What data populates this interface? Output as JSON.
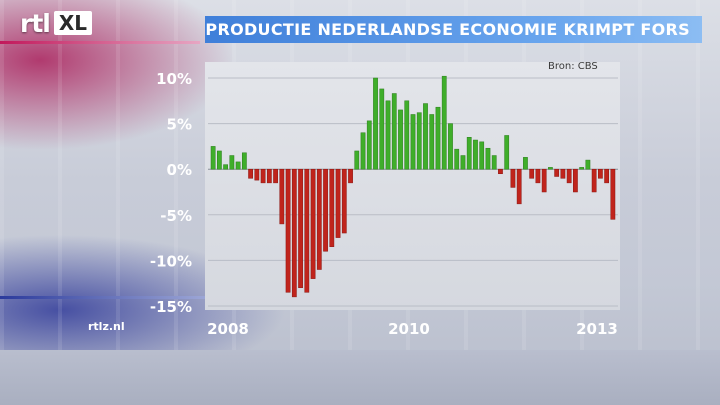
{
  "brand": {
    "logo_rtl": "rtl",
    "logo_xl": "XL",
    "website": "rtlz.nl"
  },
  "title": "PRODUCTIE NEDERLANDSE ECONOMIE KRIMPT FORS",
  "source": "Bron: CBS",
  "colors": {
    "positive": "#3fae2a",
    "negative": "#c0241c",
    "title_bar": "#4a86dc"
  },
  "chart_data": {
    "type": "bar",
    "title": "PRODUCTIE NEDERLANDSE ECONOMIE KRIMPT FORS",
    "source": "Bron: CBS",
    "ylim": [
      -15,
      10
    ],
    "yticks": [
      10,
      5,
      0,
      -5,
      -10,
      -15
    ],
    "ytick_labels": [
      "10%",
      "5%",
      "0%",
      "-5%",
      "-10%",
      "-15%"
    ],
    "xtick_labels": [
      "2008",
      "2010",
      "2013"
    ],
    "values": [
      2.5,
      2.0,
      0.5,
      1.5,
      0.8,
      1.8,
      -1.0,
      -1.2,
      -1.5,
      -1.5,
      -1.5,
      -6.0,
      -13.5,
      -14.0,
      -13.0,
      -13.5,
      -12.0,
      -11.0,
      -9.0,
      -8.5,
      -7.5,
      -7.0,
      -1.5,
      2.0,
      4.0,
      5.3,
      10.0,
      8.8,
      7.5,
      8.3,
      6.5,
      7.5,
      6.0,
      6.2,
      7.2,
      6.0,
      6.8,
      10.2,
      5.0,
      2.2,
      1.5,
      3.5,
      3.2,
      3.0,
      2.3,
      1.5,
      -0.5,
      3.7,
      -2.0,
      -3.8,
      1.3,
      -1.0,
      -1.5,
      -2.5,
      0.2,
      -0.8,
      -1.0,
      -1.5,
      -2.5,
      0.2,
      1.0,
      -2.5,
      -1.0,
      -1.5,
      -5.5
    ]
  }
}
